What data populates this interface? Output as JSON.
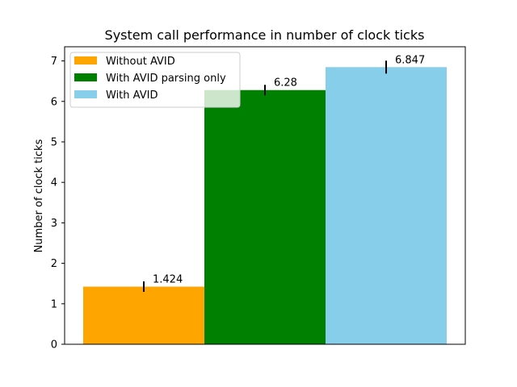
{
  "chart_data": {
    "type": "bar",
    "title": "System call performance in number of clock ticks",
    "xlabel": "",
    "ylabel": "Number of clock ticks",
    "ylim": [
      0,
      7.35
    ],
    "yticks": [
      0,
      1,
      2,
      3,
      4,
      5,
      6,
      7
    ],
    "grid": false,
    "legend_position": "top-left",
    "series": [
      {
        "name": "Without AVID",
        "value": 1.424,
        "error": 0.13,
        "color": "#ffa500",
        "value_label": "1.424"
      },
      {
        "name": "With AVID parsing only",
        "value": 6.28,
        "error": 0.13,
        "color": "#008000",
        "value_label": "6.28"
      },
      {
        "name": "With AVID",
        "value": 6.847,
        "error": 0.16,
        "color": "#87ceeb",
        "value_label": "6.847"
      }
    ]
  }
}
